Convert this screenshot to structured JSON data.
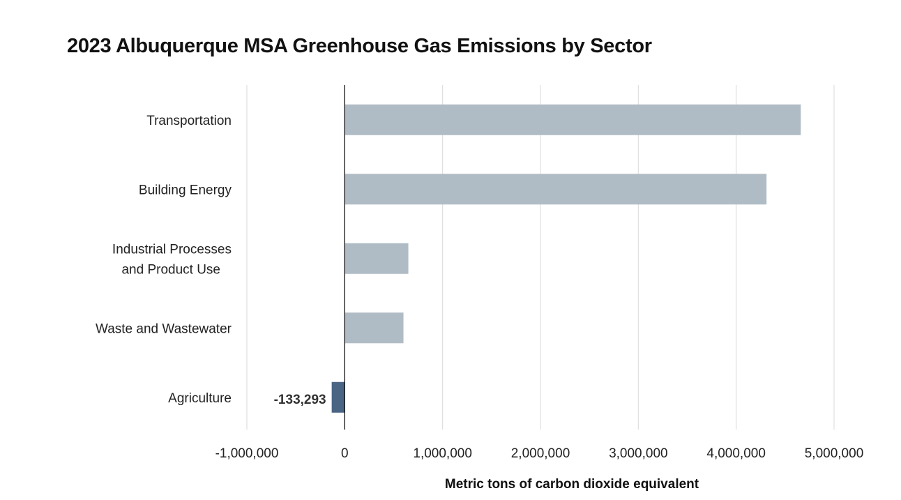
{
  "chart_data": {
    "type": "bar",
    "orientation": "horizontal",
    "title": "2023 Albuquerque MSA Greenhouse Gas Emissions by Sector",
    "xlabel": "Metric tons of carbon dioxide equivalent",
    "ylabel": "",
    "xlim": [
      -1000000,
      5000000
    ],
    "x_ticks": [
      -1000000,
      0,
      1000000,
      2000000,
      3000000,
      4000000,
      5000000
    ],
    "x_tick_labels": [
      "-1,000,000",
      "0",
      "1,000,000",
      "2,000,000",
      "3,000,000",
      "4,000,000",
      "5,000,000"
    ],
    "grid": true,
    "categories": [
      [
        "Transportation"
      ],
      [
        "Building Energy"
      ],
      [
        "Industrial Processes",
        "and Product Use"
      ],
      [
        "Waste and Wastewater"
      ],
      [
        "Agriculture"
      ]
    ],
    "values": [
      4660000,
      4310000,
      650000,
      600000,
      -133293
    ],
    "data_labels": [
      "",
      "",
      "",
      "",
      "-133,293"
    ],
    "colors": {
      "positive": "#b0bcc5",
      "negative": "#4a6584",
      "grid": "#d9d9d9",
      "axis": "#000000"
    }
  }
}
